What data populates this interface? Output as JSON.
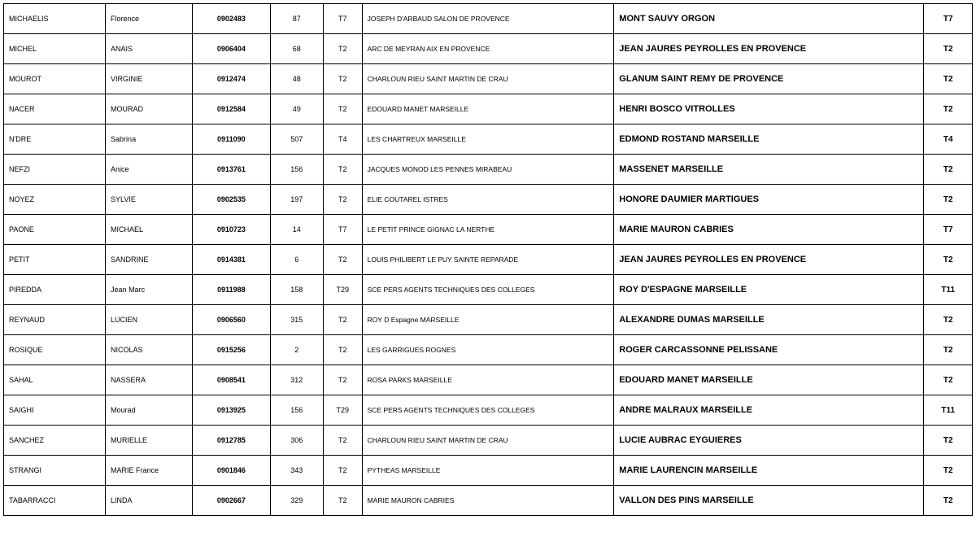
{
  "rows": [
    {
      "lastname": "MICHAELIS",
      "firstname": "Florence",
      "code": "0902483",
      "num": "87",
      "t1": "T7",
      "origin": "JOSEPH D'ARBAUD SALON DE PROVENCE",
      "dest": "MONT SAUVY ORGON",
      "t2": "T7"
    },
    {
      "lastname": "MICHEL",
      "firstname": "ANAIS",
      "code": "0906404",
      "num": "68",
      "t1": "T2",
      "origin": "ARC DE MEYRAN AIX EN PROVENCE",
      "dest": "JEAN JAURES PEYROLLES EN PROVENCE",
      "t2": "T2"
    },
    {
      "lastname": "MOUROT",
      "firstname": "VIRGINIE",
      "code": "0912474",
      "num": "48",
      "t1": "T2",
      "origin": "CHARLOUN RIEU SAINT MARTIN DE CRAU",
      "dest": "GLANUM SAINT REMY DE PROVENCE",
      "t2": "T2"
    },
    {
      "lastname": "NACER",
      "firstname": "MOURAD",
      "code": "0912584",
      "num": "49",
      "t1": "T2",
      "origin": "EDOUARD MANET MARSEILLE",
      "dest": "HENRI BOSCO VITROLLES",
      "t2": "T2"
    },
    {
      "lastname": "N'DRE",
      "firstname": "Sabrina",
      "code": "0911090",
      "num": "507",
      "t1": "T4",
      "origin": "LES CHARTREUX MARSEILLE",
      "dest": "EDMOND ROSTAND MARSEILLE",
      "t2": "T4"
    },
    {
      "lastname": "NEFZI",
      "firstname": "Anice",
      "code": "0913761",
      "num": "156",
      "t1": "T2",
      "origin": "JACQUES MONOD LES PENNES MIRABEAU",
      "dest": "MASSENET MARSEILLE",
      "t2": "T2"
    },
    {
      "lastname": "NOYEZ",
      "firstname": "SYLVIE",
      "code": "0902535",
      "num": "197",
      "t1": "T2",
      "origin": "ELIE COUTAREL ISTRES",
      "dest": "HONORE DAUMIER MARTIGUES",
      "t2": "T2"
    },
    {
      "lastname": "PAONE",
      "firstname": "MICHAEL",
      "code": "0910723",
      "num": "14",
      "t1": "T7",
      "origin": "LE PETIT PRINCE GIGNAC LA NERTHE",
      "dest": "MARIE MAURON CABRIES",
      "t2": "T7"
    },
    {
      "lastname": "PETIT",
      "firstname": "SANDRINE",
      "code": "0914381",
      "num": "6",
      "t1": "T2",
      "origin": "LOUIS PHILIBERT LE PUY SAINTE REPARADE",
      "dest": "JEAN JAURES PEYROLLES EN PROVENCE",
      "t2": "T2"
    },
    {
      "lastname": "PIREDDA",
      "firstname": "Jean Marc",
      "code": "0911988",
      "num": "158",
      "t1": "T29",
      "origin": "SCE PERS AGENTS TECHNIQUES DES COLLEGES",
      "dest": "ROY D'ESPAGNE MARSEILLE",
      "t2": "T11"
    },
    {
      "lastname": "REYNAUD",
      "firstname": "LUCIEN",
      "code": "0906560",
      "num": "315",
      "t1": "T2",
      "origin": "ROY D Espagne MARSEILLE",
      "dest": "ALEXANDRE DUMAS MARSEILLE",
      "t2": "T2"
    },
    {
      "lastname": "ROSIQUE",
      "firstname": "NICOLAS",
      "code": "0915256",
      "num": "2",
      "t1": "T2",
      "origin": "LES GARRIGUES ROGNES",
      "dest": "ROGER CARCASSONNE PELISSANE",
      "t2": "T2"
    },
    {
      "lastname": "SAHAL",
      "firstname": "NASSERA",
      "code": "0908541",
      "num": "312",
      "t1": "T2",
      "origin": "ROSA PARKS MARSEILLE",
      "dest": "EDOUARD MANET MARSEILLE",
      "t2": "T2"
    },
    {
      "lastname": "SAIGHI",
      "firstname": "Mourad",
      "code": "0913925",
      "num": "156",
      "t1": "T29",
      "origin": "SCE PERS AGENTS TECHNIQUES DES COLLEGES",
      "dest": "ANDRE MALRAUX MARSEILLE",
      "t2": "T11"
    },
    {
      "lastname": "SANCHEZ",
      "firstname": "MURIELLE",
      "code": "0912785",
      "num": "306",
      "t1": "T2",
      "origin": "CHARLOUN RIEU SAINT MARTIN DE CRAU",
      "dest": "LUCIE AUBRAC EYGUIERES",
      "t2": "T2"
    },
    {
      "lastname": "STRANGI",
      "firstname": "MARIE France",
      "code": "0901846",
      "num": "343",
      "t1": "T2",
      "origin": "PYTHEAS MARSEILLE",
      "dest": "MARIE LAURENCIN MARSEILLE",
      "t2": "T2"
    },
    {
      "lastname": "TABARRACCI",
      "firstname": "LINDA",
      "code": "0902667",
      "num": "329",
      "t1": "T2",
      "origin": "MARIE MAURON CABRIES",
      "dest": "VALLON DES PINS MARSEILLE",
      "t2": "T2"
    }
  ]
}
